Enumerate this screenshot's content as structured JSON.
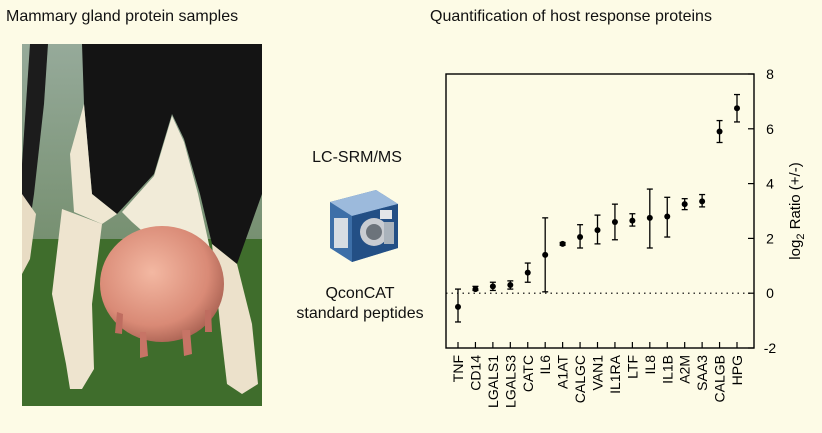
{
  "left_panel": {
    "title": "Mammary gland protein samples",
    "photo": "photo of a Holstein dairy cow udder"
  },
  "middle_panel": {
    "method": "LC-SRM/MS",
    "instrument_icon": "mass-spectrometer-icon",
    "standard_line1": "QconCAT",
    "standard_line2": "standard peptides"
  },
  "right_panel": {
    "title": "Quantification of host response proteins"
  },
  "chart_data": {
    "type": "scatter",
    "title": "Quantification of host response proteins",
    "xlabel": "",
    "ylabel_main": "log",
    "ylabel_sub": "2",
    "ylabel_rest": " Ratio (+/-)",
    "y_axis_side": "right",
    "ylim": [
      -2,
      8
    ],
    "yticks": [
      -2,
      0,
      2,
      4,
      6,
      8
    ],
    "reference_line": 0,
    "categories": [
      "TNF",
      "CD14",
      "LGALS1",
      "LGALS3",
      "CATC",
      "IL6",
      "A1AT",
      "CALGC",
      "VAN1",
      "IL1RA",
      "LTF",
      "IL8",
      "IL1B",
      "A2M",
      "SAA3",
      "CALGB",
      "HPG"
    ],
    "values": [
      -0.5,
      0.15,
      0.25,
      0.3,
      0.75,
      1.4,
      1.8,
      2.05,
      2.3,
      2.6,
      2.65,
      2.75,
      2.8,
      3.25,
      3.35,
      5.9,
      6.75
    ],
    "err_low": [
      -1.05,
      0.1,
      0.1,
      0.15,
      0.4,
      0.05,
      1.75,
      1.65,
      1.8,
      1.95,
      2.45,
      1.65,
      2.05,
      3.05,
      3.15,
      5.5,
      6.25
    ],
    "err_high": [
      0.15,
      0.25,
      0.4,
      0.45,
      1.1,
      2.75,
      1.85,
      2.5,
      2.85,
      3.25,
      2.9,
      3.8,
      3.5,
      3.45,
      3.6,
      6.3,
      7.25
    ]
  }
}
